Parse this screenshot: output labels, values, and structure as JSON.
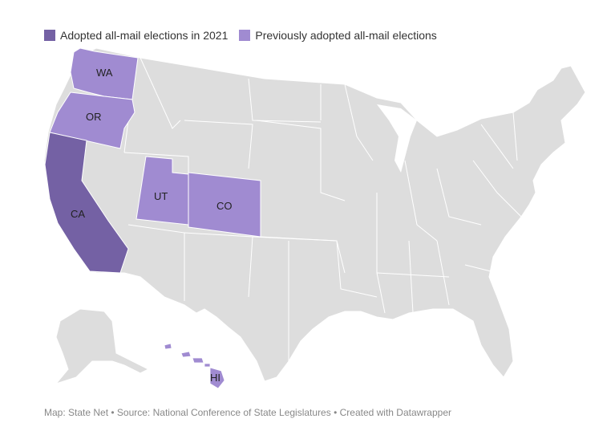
{
  "legend": [
    {
      "label": "Adopted all-mail elections in 2021",
      "color": "#7461a4"
    },
    {
      "label": "Previously adopted all-mail elections",
      "color": "#a08bd1"
    }
  ],
  "colors": {
    "background_state": "#dddddd",
    "state_border": "#ffffff"
  },
  "states": [
    {
      "abbr": "WA",
      "category": "previous"
    },
    {
      "abbr": "OR",
      "category": "previous"
    },
    {
      "abbr": "CA",
      "category": "2021"
    },
    {
      "abbr": "UT",
      "category": "previous"
    },
    {
      "abbr": "CO",
      "category": "previous"
    },
    {
      "abbr": "HI",
      "category": "previous"
    }
  ],
  "footer": "Map: State Net • Source: National Conference of State Legislatures • Created with Datawrapper"
}
